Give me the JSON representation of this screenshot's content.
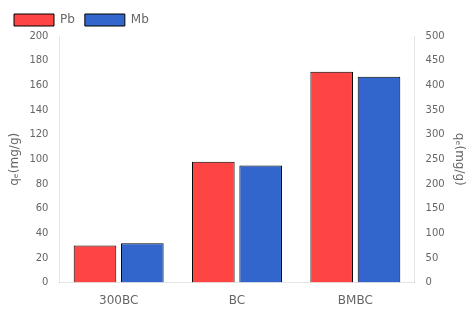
{
  "chart_data": {
    "type": "bar",
    "categories": [
      "300BC",
      "BC",
      "BMBC"
    ],
    "series": [
      {
        "name": "Pb",
        "color": "#FF4444",
        "values": [
          30,
          98,
          171
        ]
      },
      {
        "name": "Mb",
        "color": "#3366CC",
        "values": [
          32,
          95,
          167
        ]
      }
    ],
    "ylabel": "qₑ(mg/g)",
    "y2label": "qₑ(mg/g)",
    "ylim": [
      0,
      200
    ],
    "yticks": [
      0,
      20,
      40,
      60,
      80,
      100,
      120,
      140,
      160,
      180,
      200
    ],
    "y2lim": [
      0,
      500
    ],
    "y2ticks": [
      0,
      50,
      100,
      150,
      200,
      250,
      300,
      350,
      400,
      450,
      500
    ],
    "grid": false,
    "legend": "upper left"
  }
}
